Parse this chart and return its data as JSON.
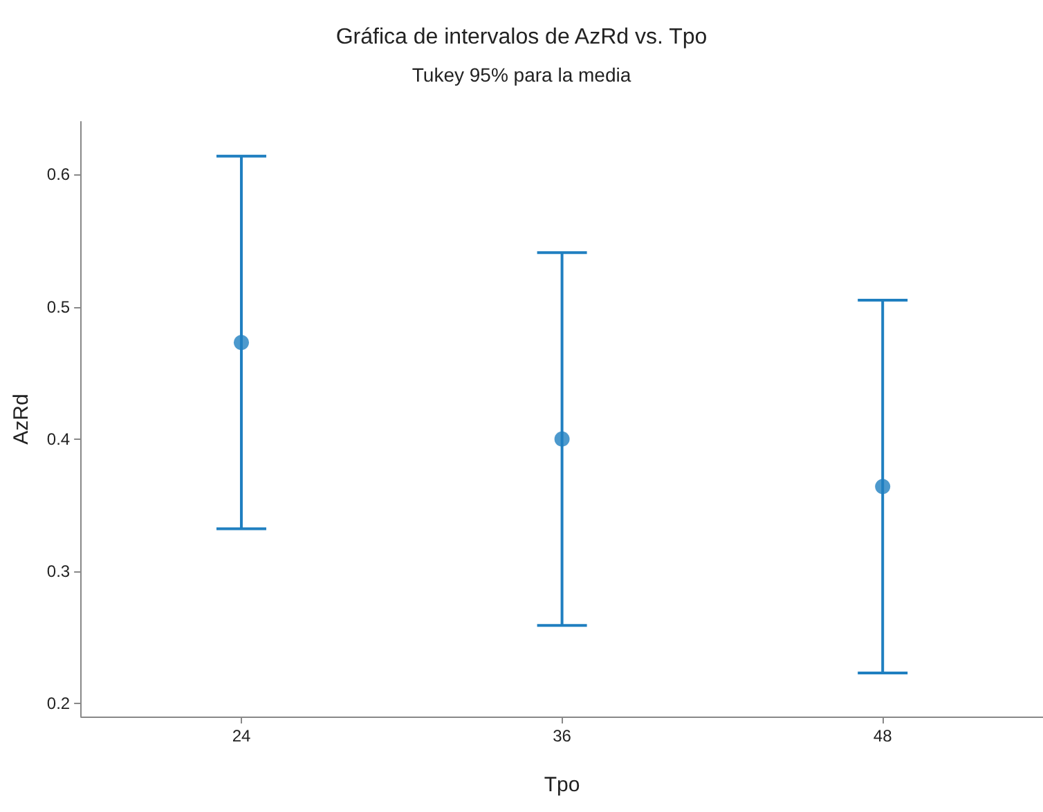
{
  "chart_data": {
    "type": "scatter",
    "title": "Gráfica de intervalos de AzRd vs. Tpo",
    "subtitle": "Tukey 95% para la media",
    "xlabel": "Tpo",
    "ylabel": "AzRd",
    "categories": [
      "24",
      "36",
      "48"
    ],
    "series": [
      {
        "color": "#1f7fc0",
        "values": [
          0.473,
          0.4,
          0.364
        ],
        "errors": [
          0.141,
          0.141,
          0.141
        ]
      }
    ],
    "ylim": [
      0.19,
      0.64
    ],
    "yticks": [
      0.2,
      0.3,
      0.4,
      0.5,
      0.6
    ],
    "grid": false,
    "marker": "circle"
  }
}
